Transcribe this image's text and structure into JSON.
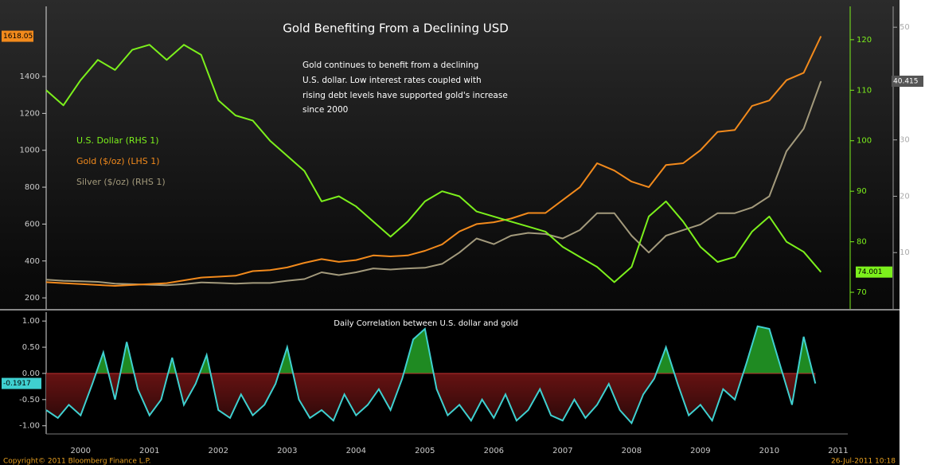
{
  "chart_data": [
    {
      "type": "line",
      "title": "Gold Benefiting From a Declining USD",
      "annotation": [
        "Gold continues to benefit from a declining",
        "U.S. dollar. Low interest rates coupled with",
        "rising debt levels have supported gold's increase",
        "since 2000"
      ],
      "x": [
        2000,
        2000.25,
        2000.5,
        2000.75,
        2001,
        2001.25,
        2001.5,
        2001.75,
        2002,
        2002.25,
        2002.5,
        2002.75,
        2003,
        2003.25,
        2003.5,
        2003.75,
        2004,
        2004.25,
        2004.5,
        2004.75,
        2005,
        2005.25,
        2005.5,
        2005.75,
        2006,
        2006.25,
        2006.5,
        2006.75,
        2007,
        2007.25,
        2007.5,
        2007.75,
        2008,
        2008.25,
        2008.5,
        2008.75,
        2009,
        2009.25,
        2009.5,
        2009.75,
        2010,
        2010.25,
        2010.5,
        2010.75,
        2011,
        2011.25
      ],
      "xlim": [
        2000,
        2011.64
      ],
      "ylim": [
        140,
        1780
      ],
      "yticks": [
        200,
        400,
        600,
        800,
        1000,
        1200,
        1400
      ],
      "y2lim": [
        66.7,
        126.6
      ],
      "y2ticks": [
        70,
        80,
        90,
        100,
        110,
        120
      ],
      "y3lim": [
        0,
        53.7
      ],
      "y3ticks": [
        10,
        20,
        30,
        40,
        50
      ],
      "series": [
        {
          "name": "U.S. Dollar (RHS 1)",
          "color": "#7cf01c",
          "axis": "y2",
          "values": [
            110,
            107,
            112,
            116,
            114,
            118,
            119,
            116,
            119,
            117,
            108,
            105,
            104,
            100,
            97,
            94,
            88,
            89,
            87,
            84,
            81,
            84,
            88,
            90,
            89,
            86,
            85,
            84,
            83,
            82,
            79,
            77,
            75,
            72,
            75,
            85,
            88,
            84,
            79,
            76,
            77,
            82,
            85,
            80,
            78,
            74.001
          ]
        },
        {
          "name": "Gold ($/oz) (LHS 1)",
          "color": "#f28a1c",
          "axis": "y",
          "values": [
            285,
            280,
            275,
            270,
            265,
            270,
            275,
            280,
            295,
            310,
            315,
            320,
            345,
            350,
            365,
            390,
            410,
            395,
            405,
            430,
            425,
            430,
            455,
            490,
            560,
            600,
            610,
            630,
            660,
            660,
            730,
            800,
            930,
            890,
            830,
            800,
            920,
            930,
            1000,
            1100,
            1110,
            1240,
            1270,
            1380,
            1420,
            1618.05
          ]
        },
        {
          "name": "Silver ($/oz) (RHS 1)",
          "color": "#a39a7c",
          "axis": "y3",
          "values": [
            5.2,
            5.0,
            4.9,
            4.8,
            4.5,
            4.4,
            4.3,
            4.2,
            4.4,
            4.7,
            4.6,
            4.5,
            4.6,
            4.6,
            5.0,
            5.3,
            6.5,
            6.0,
            6.5,
            7.2,
            7.0,
            7.2,
            7.3,
            8.0,
            10,
            12.5,
            11.5,
            13,
            13.5,
            13.3,
            12.5,
            14,
            17,
            17,
            13,
            10,
            13,
            14,
            15,
            17,
            17,
            18,
            20,
            28,
            32,
            40.415
          ]
        }
      ]
    },
    {
      "type": "area",
      "title": "Daily Correlation between U.S. dollar and gold",
      "x": [
        2000,
        2000.17,
        2000.33,
        2000.5,
        2000.67,
        2000.83,
        2001,
        2001.17,
        2001.33,
        2001.5,
        2001.67,
        2001.83,
        2002,
        2002.17,
        2002.33,
        2002.5,
        2002.67,
        2002.83,
        2003,
        2003.17,
        2003.33,
        2003.5,
        2003.67,
        2003.83,
        2004,
        2004.17,
        2004.33,
        2004.5,
        2004.67,
        2004.83,
        2005,
        2005.17,
        2005.33,
        2005.5,
        2005.67,
        2005.83,
        2006,
        2006.17,
        2006.33,
        2006.5,
        2006.67,
        2006.83,
        2007,
        2007.17,
        2007.33,
        2007.5,
        2007.67,
        2007.83,
        2008,
        2008.17,
        2008.33,
        2008.5,
        2008.67,
        2008.83,
        2009,
        2009.17,
        2009.33,
        2009.5,
        2009.67,
        2009.83,
        2010,
        2010.17,
        2010.33,
        2010.5,
        2010.67,
        2010.83,
        2011,
        2011.17
      ],
      "values": [
        -0.7,
        -0.85,
        -0.6,
        -0.8,
        -0.2,
        0.4,
        -0.5,
        0.6,
        -0.3,
        -0.8,
        -0.5,
        0.3,
        -0.6,
        -0.2,
        0.35,
        -0.7,
        -0.85,
        -0.4,
        -0.8,
        -0.6,
        -0.2,
        0.5,
        -0.5,
        -0.85,
        -0.7,
        -0.9,
        -0.4,
        -0.8,
        -0.6,
        -0.3,
        -0.7,
        -0.1,
        0.65,
        0.85,
        -0.3,
        -0.8,
        -0.6,
        -0.9,
        -0.5,
        -0.85,
        -0.4,
        -0.9,
        -0.7,
        -0.3,
        -0.8,
        -0.9,
        -0.5,
        -0.85,
        -0.6,
        -0.2,
        -0.7,
        -0.95,
        -0.4,
        -0.1,
        0.5,
        -0.2,
        -0.8,
        -0.6,
        -0.9,
        -0.3,
        -0.5,
        0.2,
        0.9,
        0.85,
        0.1,
        -0.6,
        0.7,
        -0.1917
      ],
      "line_color": "#3fd0d0",
      "positive_color": "#1f8a22",
      "negative_color": "#a01c1c",
      "xlim": [
        2000,
        2011.64
      ],
      "ylim": [
        -1.08,
        1.17
      ],
      "yticks": [
        {
          "value": 1,
          "label": "1.00"
        },
        {
          "value": 0.5,
          "label": "0.50"
        },
        {
          "value": 0,
          "label": "0.00"
        },
        {
          "value": -0.5,
          "label": "-0.50"
        },
        {
          "value": -1,
          "label": "-1.00"
        }
      ],
      "xticks": [
        {
          "value": 2000.5,
          "label": "2000"
        },
        {
          "value": 2001.5,
          "label": "2001"
        },
        {
          "value": 2002.5,
          "label": "2002"
        },
        {
          "value": 2003.5,
          "label": "2003"
        },
        {
          "value": 2004.5,
          "label": "2004"
        },
        {
          "value": 2005.5,
          "label": "2005"
        },
        {
          "value": 2006.5,
          "label": "2006"
        },
        {
          "value": 2007.5,
          "label": "2007"
        },
        {
          "value": 2008.5,
          "label": "2008"
        },
        {
          "value": 2009.5,
          "label": "2009"
        },
        {
          "value": 2010.5,
          "label": "2010"
        },
        {
          "value": 2011.5,
          "label": "2011"
        }
      ],
      "copyright": "Copyright© 2011 Bloomberg Finance L.P.",
      "timestamp": "26-Jul-2011 10:18"
    }
  ]
}
